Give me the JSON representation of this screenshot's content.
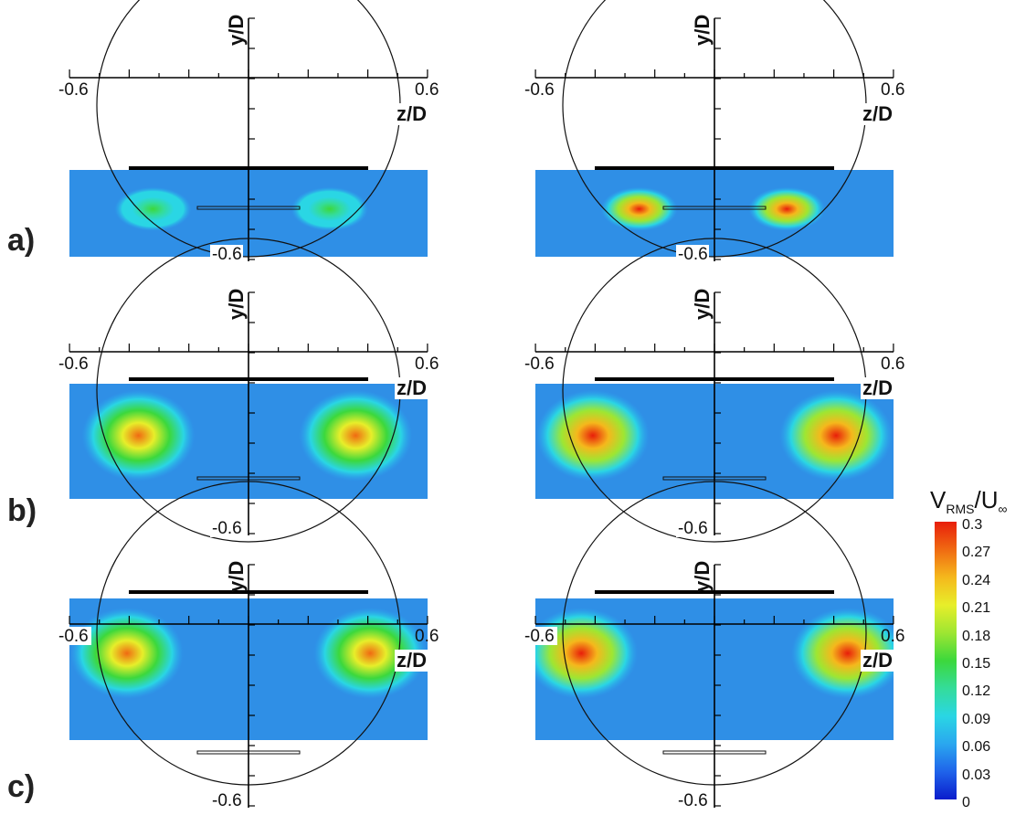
{
  "chart_data": [
    {
      "type": "heatmap",
      "panel": "a)",
      "column": "left",
      "xlabel": "z/D",
      "ylabel": "y/D",
      "x_ticks": [
        "-0.6",
        "0.6"
      ],
      "y_ticks": [
        "-0.6"
      ],
      "xlim": [
        -0.6,
        0.6
      ],
      "ylim": [
        -0.6,
        0.25
      ],
      "peak_value": 0.16,
      "hot_spots": [
        {
          "z": -0.33,
          "y": -0.41,
          "value": 0.15
        },
        {
          "z": 0.28,
          "y": -0.41,
          "value": 0.15
        }
      ]
    },
    {
      "type": "heatmap",
      "panel": "a)",
      "column": "right",
      "xlabel": "z/D",
      "ylabel": "y/D",
      "x_ticks": [
        "-0.6",
        "0.6"
      ],
      "y_ticks": [
        "-0.6"
      ],
      "xlim": [
        -0.6,
        0.6
      ],
      "ylim": [
        -0.6,
        0.25
      ],
      "peak_value": 0.3,
      "hot_spots": [
        {
          "z": -0.26,
          "y": -0.41,
          "value": 0.3
        },
        {
          "z": 0.25,
          "y": -0.41,
          "value": 0.3
        }
      ]
    },
    {
      "type": "heatmap",
      "panel": "b)",
      "column": "left",
      "xlabel": "z/D",
      "ylabel": "y/D",
      "x_ticks": [
        "-0.6",
        "0.6"
      ],
      "y_ticks": [
        "-0.6"
      ],
      "xlim": [
        -0.6,
        0.6
      ],
      "ylim": [
        -0.6,
        0.25
      ],
      "peak_value": 0.27,
      "hot_spots": [
        {
          "z": -0.38,
          "y": -0.12,
          "value": 0.27
        },
        {
          "z": 0.37,
          "y": -0.12,
          "value": 0.27
        }
      ]
    },
    {
      "type": "heatmap",
      "panel": "b)",
      "column": "right",
      "xlabel": "z/D",
      "ylabel": "y/D",
      "x_ticks": [
        "-0.6",
        "0.6"
      ],
      "y_ticks": [
        "-0.6"
      ],
      "xlim": [
        -0.6,
        0.6
      ],
      "ylim": [
        -0.6,
        0.25
      ],
      "peak_value": 0.3,
      "hot_spots": [
        {
          "z": -0.42,
          "y": -0.12,
          "value": 0.3
        },
        {
          "z": 0.42,
          "y": -0.12,
          "value": 0.3
        }
      ]
    },
    {
      "type": "heatmap",
      "panel": "c)",
      "column": "left",
      "xlabel": "z/D",
      "ylabel": "y/D",
      "x_ticks": [
        "-0.6",
        "0.6"
      ],
      "y_ticks": [
        "-0.6"
      ],
      "xlim": [
        -0.6,
        0.6
      ],
      "ylim": [
        -0.6,
        0.25
      ],
      "peak_value": 0.27,
      "hot_spots": [
        {
          "z": -0.42,
          "y": 0.0,
          "value": 0.27
        },
        {
          "z": 0.42,
          "y": 0.0,
          "value": 0.27
        }
      ]
    },
    {
      "type": "heatmap",
      "panel": "c)",
      "column": "right",
      "xlabel": "z/D",
      "ylabel": "y/D",
      "x_ticks": [
        "-0.6",
        "0.6"
      ],
      "y_ticks": [
        "-0.6"
      ],
      "xlim": [
        -0.6,
        0.6
      ],
      "ylim": [
        -0.6,
        0.25
      ],
      "peak_value": 0.3,
      "hot_spots": [
        {
          "z": -0.46,
          "y": 0.0,
          "value": 0.3
        },
        {
          "z": 0.46,
          "y": 0.0,
          "value": 0.3
        }
      ]
    }
  ],
  "colorbar": {
    "title_main": "V",
    "title_sub": "RMS",
    "title_mid": "/U",
    "title_sub2": "∞",
    "ticks": [
      "0.3",
      "0.27",
      "0.24",
      "0.21",
      "0.18",
      "0.15",
      "0.12",
      "0.09",
      "0.06",
      "0.03",
      "0"
    ],
    "range": [
      0,
      0.3
    ],
    "colors": [
      "#0a1ccc",
      "#1f63ea",
      "#2aa7ef",
      "#2ad6e4",
      "#34dc9a",
      "#3cd83c",
      "#9ee632",
      "#e7ee2a",
      "#f5b81c",
      "#f06a12",
      "#e81e0a"
    ]
  },
  "row_labels": [
    "a)",
    "b)",
    "c)"
  ]
}
